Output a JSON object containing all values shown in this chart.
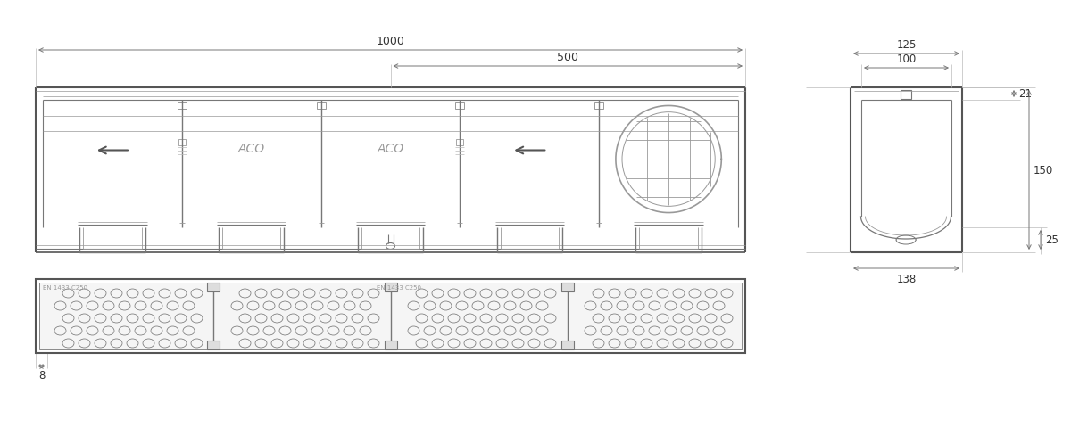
{
  "bg_color": "#ffffff",
  "lc": "#555555",
  "lc2": "#777777",
  "lc3": "#999999",
  "lc4": "#bbbbbb",
  "dc": "#777777",
  "dim_label_1000": "1000",
  "dim_label_500": "500",
  "dim_label_125": "125",
  "dim_label_100": "100",
  "dim_label_150": "150",
  "dim_label_138": "138",
  "dim_label_21": "21",
  "dim_label_25": "25",
  "dim_label_8": "8",
  "aco_text": "ACO",
  "en_text": "EN 1433 C250",
  "font_size_dim": 8.5,
  "font_size_label": 9.5
}
